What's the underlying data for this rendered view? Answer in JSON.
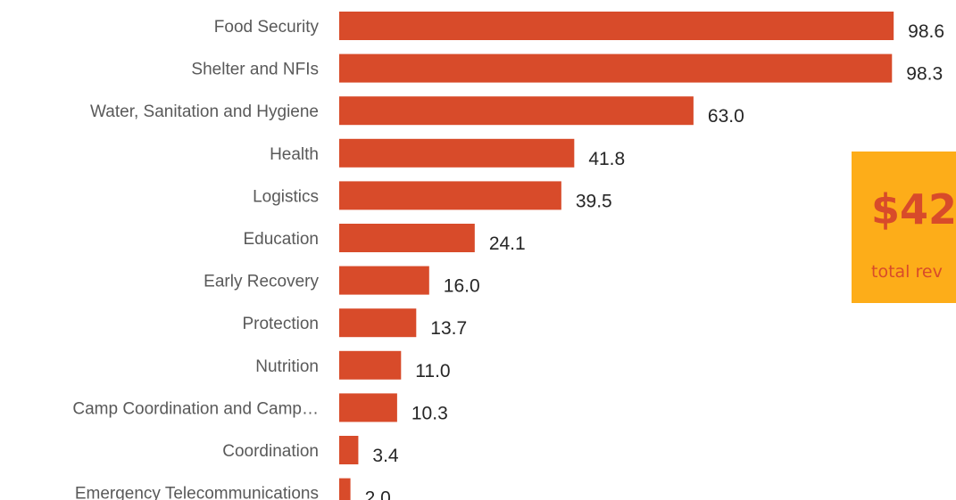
{
  "chart_data": {
    "type": "bar",
    "orientation": "horizontal",
    "categories": [
      "Food Security",
      "Shelter and NFIs",
      "Water, Sanitation and Hygiene",
      "Health",
      "Logistics",
      "Education",
      "Early Recovery",
      "Protection",
      "Nutrition",
      "Camp Coordination and Camp…",
      "Coordination",
      "Emergency Telecommunications"
    ],
    "values": [
      98.6,
      98.3,
      63.0,
      41.8,
      39.5,
      24.1,
      16.0,
      13.7,
      11.0,
      10.3,
      3.4,
      2.0
    ],
    "value_labels": [
      "98.6",
      "98.3",
      "63.0",
      "41.8",
      "39.5",
      "24.1",
      "16.0",
      "13.7",
      "11.0",
      "10.3",
      "3.4",
      "2.0"
    ],
    "xlim": [
      0,
      100
    ],
    "grid": false,
    "legend": "none",
    "bar_color": "#d84b2a"
  },
  "summary_card": {
    "value": "$42.",
    "caption": "total rev",
    "background": "#fdad19",
    "text_color": "#d84b2a"
  }
}
